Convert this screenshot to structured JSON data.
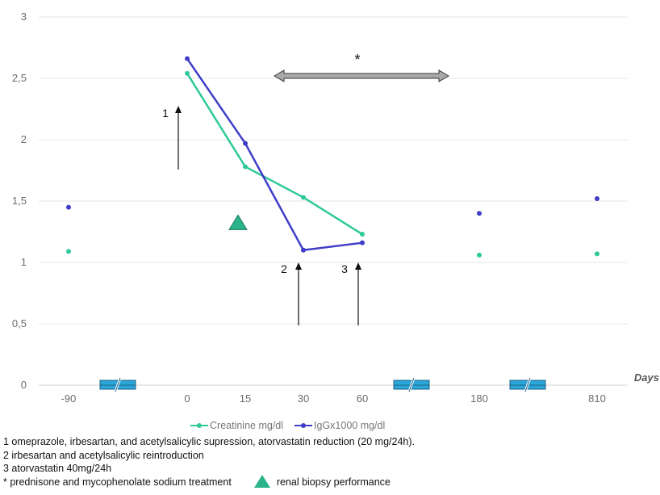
{
  "chart_data": {
    "type": "line",
    "ylim": [
      0,
      3
    ],
    "y_ticks": [
      "0",
      "0,5",
      "1",
      "1,5",
      "2",
      "2,5",
      "3"
    ],
    "y_tick_values": [
      0,
      0.5,
      1,
      1.5,
      2,
      2.5,
      3
    ],
    "x_categories": [
      "-90",
      "0",
      "15",
      "30",
      "60",
      "180",
      "810"
    ],
    "x_axis_title": "Days",
    "axis_breaks_after": [
      "-90",
      "60",
      "180"
    ],
    "grid": true,
    "legend_position": "bottom",
    "series": [
      {
        "name": "Creatinine mg/dl",
        "color": "#2ec99a",
        "points": [
          {
            "x": "-90",
            "y": 1.09
          },
          {
            "x": "0",
            "y": 2.54
          },
          {
            "x": "15",
            "y": 1.78
          },
          {
            "x": "30",
            "y": 1.53
          },
          {
            "x": "60",
            "y": 1.23
          },
          {
            "x": "180",
            "y": 1.06
          },
          {
            "x": "810",
            "y": 1.07
          }
        ],
        "connected_from": "0",
        "connected_to": "60"
      },
      {
        "name": "IgGx1000 mg/dl",
        "color": "#3f3dc8",
        "points": [
          {
            "x": "-90",
            "y": 1.45
          },
          {
            "x": "0",
            "y": 2.66
          },
          {
            "x": "15",
            "y": 1.97
          },
          {
            "x": "30",
            "y": 1.1
          },
          {
            "x": "60",
            "y": 1.16
          },
          {
            "x": "180",
            "y": 1.4
          },
          {
            "x": "810",
            "y": 1.52
          }
        ],
        "connected_from": "0",
        "connected_to": "60"
      }
    ],
    "annotations": [
      {
        "label": "1",
        "x": "0",
        "type": "arrow-up"
      },
      {
        "label": "2",
        "x": "30",
        "type": "arrow-up"
      },
      {
        "label": "3",
        "x": "60",
        "type": "arrow-up"
      },
      {
        "label": "*",
        "type": "double-arrow",
        "from_x": "15",
        "to_x": "60"
      },
      {
        "label": "renal biopsy performance",
        "type": "triangle",
        "x": "15",
        "y": 1.32
      }
    ]
  },
  "notes": {
    "n1": "1 omeprazole, irbesartan, and acetylsalicylic supression, atorvastatin reduction (20 mg/24h).",
    "n2": "2 irbesartan and acetylsalicylic reintroduction",
    "n3": "3 atorvastatin 40mg/24h",
    "n4": "* prednisone and mycophenolate sodium treatment",
    "n4b": "renal biopsy performance"
  },
  "colors": {
    "creatinine": "#2ec99a",
    "igg": "#3f3dc8",
    "triangle": "#2ab38a",
    "break_marker": "#2aa7d8",
    "double_arrow": "#a9a9a9",
    "grid": "#e6e6e6"
  }
}
